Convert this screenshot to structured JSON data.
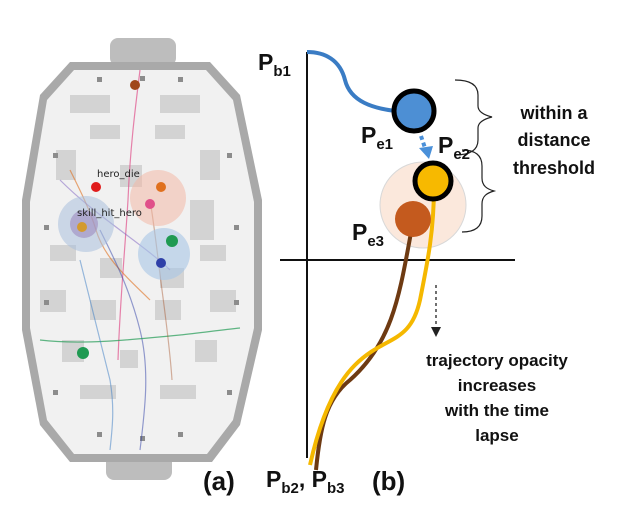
{
  "panel_a": {
    "caption": "(a)",
    "event_labels": {
      "hero_die": "hero_die",
      "skill_hit_hero": "skill_hit_hero"
    },
    "colors": {
      "map_bg": "#f1f1f1",
      "map_border": "#a9a9a9",
      "block": "#d3d3d3",
      "orange": "#e0701e",
      "red": "#e01b1b",
      "pink": "#e0508a",
      "green": "#1f9a52",
      "blue": "#2f40a8",
      "brown": "#a0461a"
    }
  },
  "panel_b": {
    "caption": "(b)",
    "labels": {
      "pb1": {
        "main": "P",
        "sub": "b1"
      },
      "pe1": {
        "main": "P",
        "sub": "e1"
      },
      "pe2": {
        "main": "P",
        "sub": "e2"
      },
      "pe3": {
        "main": "P",
        "sub": "e3"
      },
      "pb2": {
        "main": "P",
        "sub": "b2"
      },
      "sep": ", ",
      "pb3": {
        "main": "P",
        "sub": "b3"
      }
    },
    "threshold_text": [
      "within a",
      "distance",
      "threshold"
    ],
    "opacity_text": [
      "trajectory opacity",
      "increases",
      "with the time",
      "lapse"
    ],
    "colors": {
      "blue_traj": "#3a7cc4",
      "yellow_traj": "#f5b800",
      "brown_traj": "#6e3a12",
      "blue_node": "#4d8fd4",
      "yellow_node": "#f7b900",
      "brown_node": "#c45a1e",
      "arrow": "#4a90d9"
    }
  }
}
